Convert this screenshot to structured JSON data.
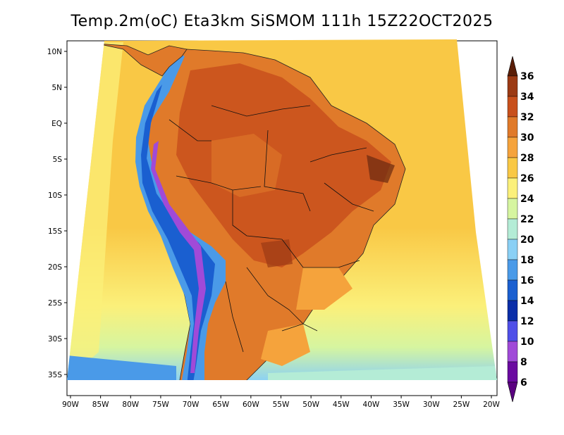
{
  "title": "Temp.2m(oC) Eta3km SiSMOM 111h 15Z22OCT2025",
  "map": {
    "lon_range": [
      -90,
      -20
    ],
    "lat_range": [
      -38,
      11
    ],
    "lon_ticks": [
      {
        "value": -90,
        "label": "90W"
      },
      {
        "value": -85,
        "label": "85W"
      },
      {
        "value": -80,
        "label": "80W"
      },
      {
        "value": -75,
        "label": "75W"
      },
      {
        "value": -70,
        "label": "70W"
      },
      {
        "value": -65,
        "label": "65W"
      },
      {
        "value": -60,
        "label": "60W"
      },
      {
        "value": -55,
        "label": "55W"
      },
      {
        "value": -50,
        "label": "50W"
      },
      {
        "value": -45,
        "label": "45W"
      },
      {
        "value": -40,
        "label": "40W"
      },
      {
        "value": -35,
        "label": "35W"
      },
      {
        "value": -30,
        "label": "30W"
      },
      {
        "value": -25,
        "label": "25W"
      },
      {
        "value": -20,
        "label": "20W"
      }
    ],
    "lat_ticks": [
      {
        "value": 10,
        "label": "10N"
      },
      {
        "value": 5,
        "label": "5N"
      },
      {
        "value": 0,
        "label": "EQ"
      },
      {
        "value": -5,
        "label": "5S"
      },
      {
        "value": -10,
        "label": "10S"
      },
      {
        "value": -15,
        "label": "15S"
      },
      {
        "value": -20,
        "label": "20S"
      },
      {
        "value": -25,
        "label": "25S"
      },
      {
        "value": -30,
        "label": "30S"
      },
      {
        "value": -35,
        "label": "35S"
      }
    ]
  },
  "colorbar": {
    "levels": [
      {
        "label": "36",
        "color": "#6a2a10"
      },
      {
        "label": "34",
        "color": "#9b3a14"
      },
      {
        "label": "32",
        "color": "#c8501c"
      },
      {
        "label": "30",
        "color": "#e07a2a"
      },
      {
        "label": "28",
        "color": "#f5a33c"
      },
      {
        "label": "26",
        "color": "#f9c845"
      },
      {
        "label": "24",
        "color": "#fbf07a"
      },
      {
        "label": "22",
        "color": "#d6f5a0"
      },
      {
        "label": "20",
        "color": "#b4ecd6"
      },
      {
        "label": "18",
        "color": "#8ad0f5"
      },
      {
        "label": "16",
        "color": "#4a9ae8"
      },
      {
        "label": "14",
        "color": "#1a5fd0"
      },
      {
        "label": "12",
        "color": "#0a2ea8"
      },
      {
        "label": "10",
        "color": "#4f4fe8"
      },
      {
        "label": "8",
        "color": "#a04ad8"
      },
      {
        "label": "6",
        "color": "#6a0aa0"
      }
    ],
    "top_arrow_color": "#5a1e08",
    "bottom_arrow_color": "#5a0080"
  },
  "fill_colors": {
    "ocean_warm": "#f9c845",
    "ocean_cool": "#fbf07a",
    "land_hot": "#e07a2a",
    "land_very_hot": "#c8501c",
    "andes": "#4a9ae8",
    "south_cool": "#b4ecd6"
  }
}
